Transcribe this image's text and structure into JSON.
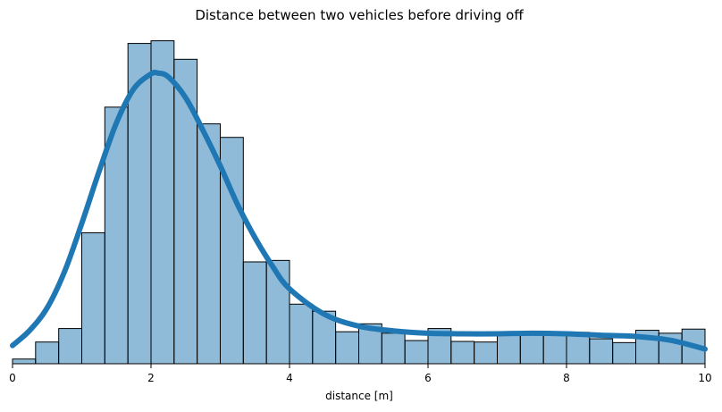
{
  "chart_data": {
    "type": "bar",
    "title": "Distance between two vehicles before driving off",
    "xlabel": "distance [m]",
    "ylabel": "",
    "xlim": [
      0,
      10
    ],
    "xticks": [
      0,
      2,
      4,
      6,
      8,
      10
    ],
    "grid": false,
    "legend": "none",
    "y_axis_visible": false,
    "histogram": {
      "bin_width": 0.333,
      "color": "#1f77b4",
      "bins": [
        {
          "start": 0.0,
          "count": 1.6
        },
        {
          "start": 0.333,
          "count": 7.4
        },
        {
          "start": 0.667,
          "count": 12.0
        },
        {
          "start": 1.0,
          "count": 44.6
        },
        {
          "start": 1.333,
          "count": 87.4
        },
        {
          "start": 1.667,
          "count": 109.1
        },
        {
          "start": 2.0,
          "count": 110.0
        },
        {
          "start": 2.333,
          "count": 103.7
        },
        {
          "start": 2.667,
          "count": 81.7
        },
        {
          "start": 3.0,
          "count": 77.1
        },
        {
          "start": 3.333,
          "count": 34.7
        },
        {
          "start": 3.667,
          "count": 35.2
        },
        {
          "start": 4.0,
          "count": 20.3
        },
        {
          "start": 4.333,
          "count": 17.9
        },
        {
          "start": 4.667,
          "count": 10.9
        },
        {
          "start": 5.0,
          "count": 13.6
        },
        {
          "start": 5.333,
          "count": 10.4
        },
        {
          "start": 5.667,
          "count": 7.9
        },
        {
          "start": 6.0,
          "count": 12.0
        },
        {
          "start": 6.333,
          "count": 7.6
        },
        {
          "start": 6.667,
          "count": 7.4
        },
        {
          "start": 7.0,
          "count": 10.9
        },
        {
          "start": 7.333,
          "count": 10.7
        },
        {
          "start": 7.667,
          "count": 10.9
        },
        {
          "start": 8.0,
          "count": 10.7
        },
        {
          "start": 8.333,
          "count": 8.5
        },
        {
          "start": 8.667,
          "count": 7.2
        },
        {
          "start": 9.0,
          "count": 11.4
        },
        {
          "start": 9.333,
          "count": 10.4
        },
        {
          "start": 9.667,
          "count": 11.8
        }
      ]
    },
    "kde": {
      "color": "#1f77b4",
      "x": [
        0.0,
        0.25,
        0.5,
        0.75,
        1.0,
        1.25,
        1.5,
        1.75,
        2.0,
        2.1,
        2.25,
        2.5,
        2.75,
        3.0,
        3.25,
        3.5,
        3.75,
        4.0,
        4.5,
        5.0,
        5.5,
        6.0,
        6.5,
        7.0,
        7.5,
        8.0,
        8.5,
        9.0,
        9.5,
        10.0
      ],
      "y": [
        6.2,
        11.4,
        19.0,
        31.3,
        47.8,
        65.5,
        82.0,
        93.6,
        98.7,
        99.0,
        97.7,
        90.6,
        79.5,
        67.4,
        54.2,
        43.0,
        33.4,
        25.5,
        16.9,
        12.8,
        11.2,
        10.4,
        10.2,
        10.2,
        10.4,
        10.2,
        9.7,
        9.3,
        8.0,
        5.0
      ]
    },
    "ylim": [
      0,
      110.8
    ]
  }
}
